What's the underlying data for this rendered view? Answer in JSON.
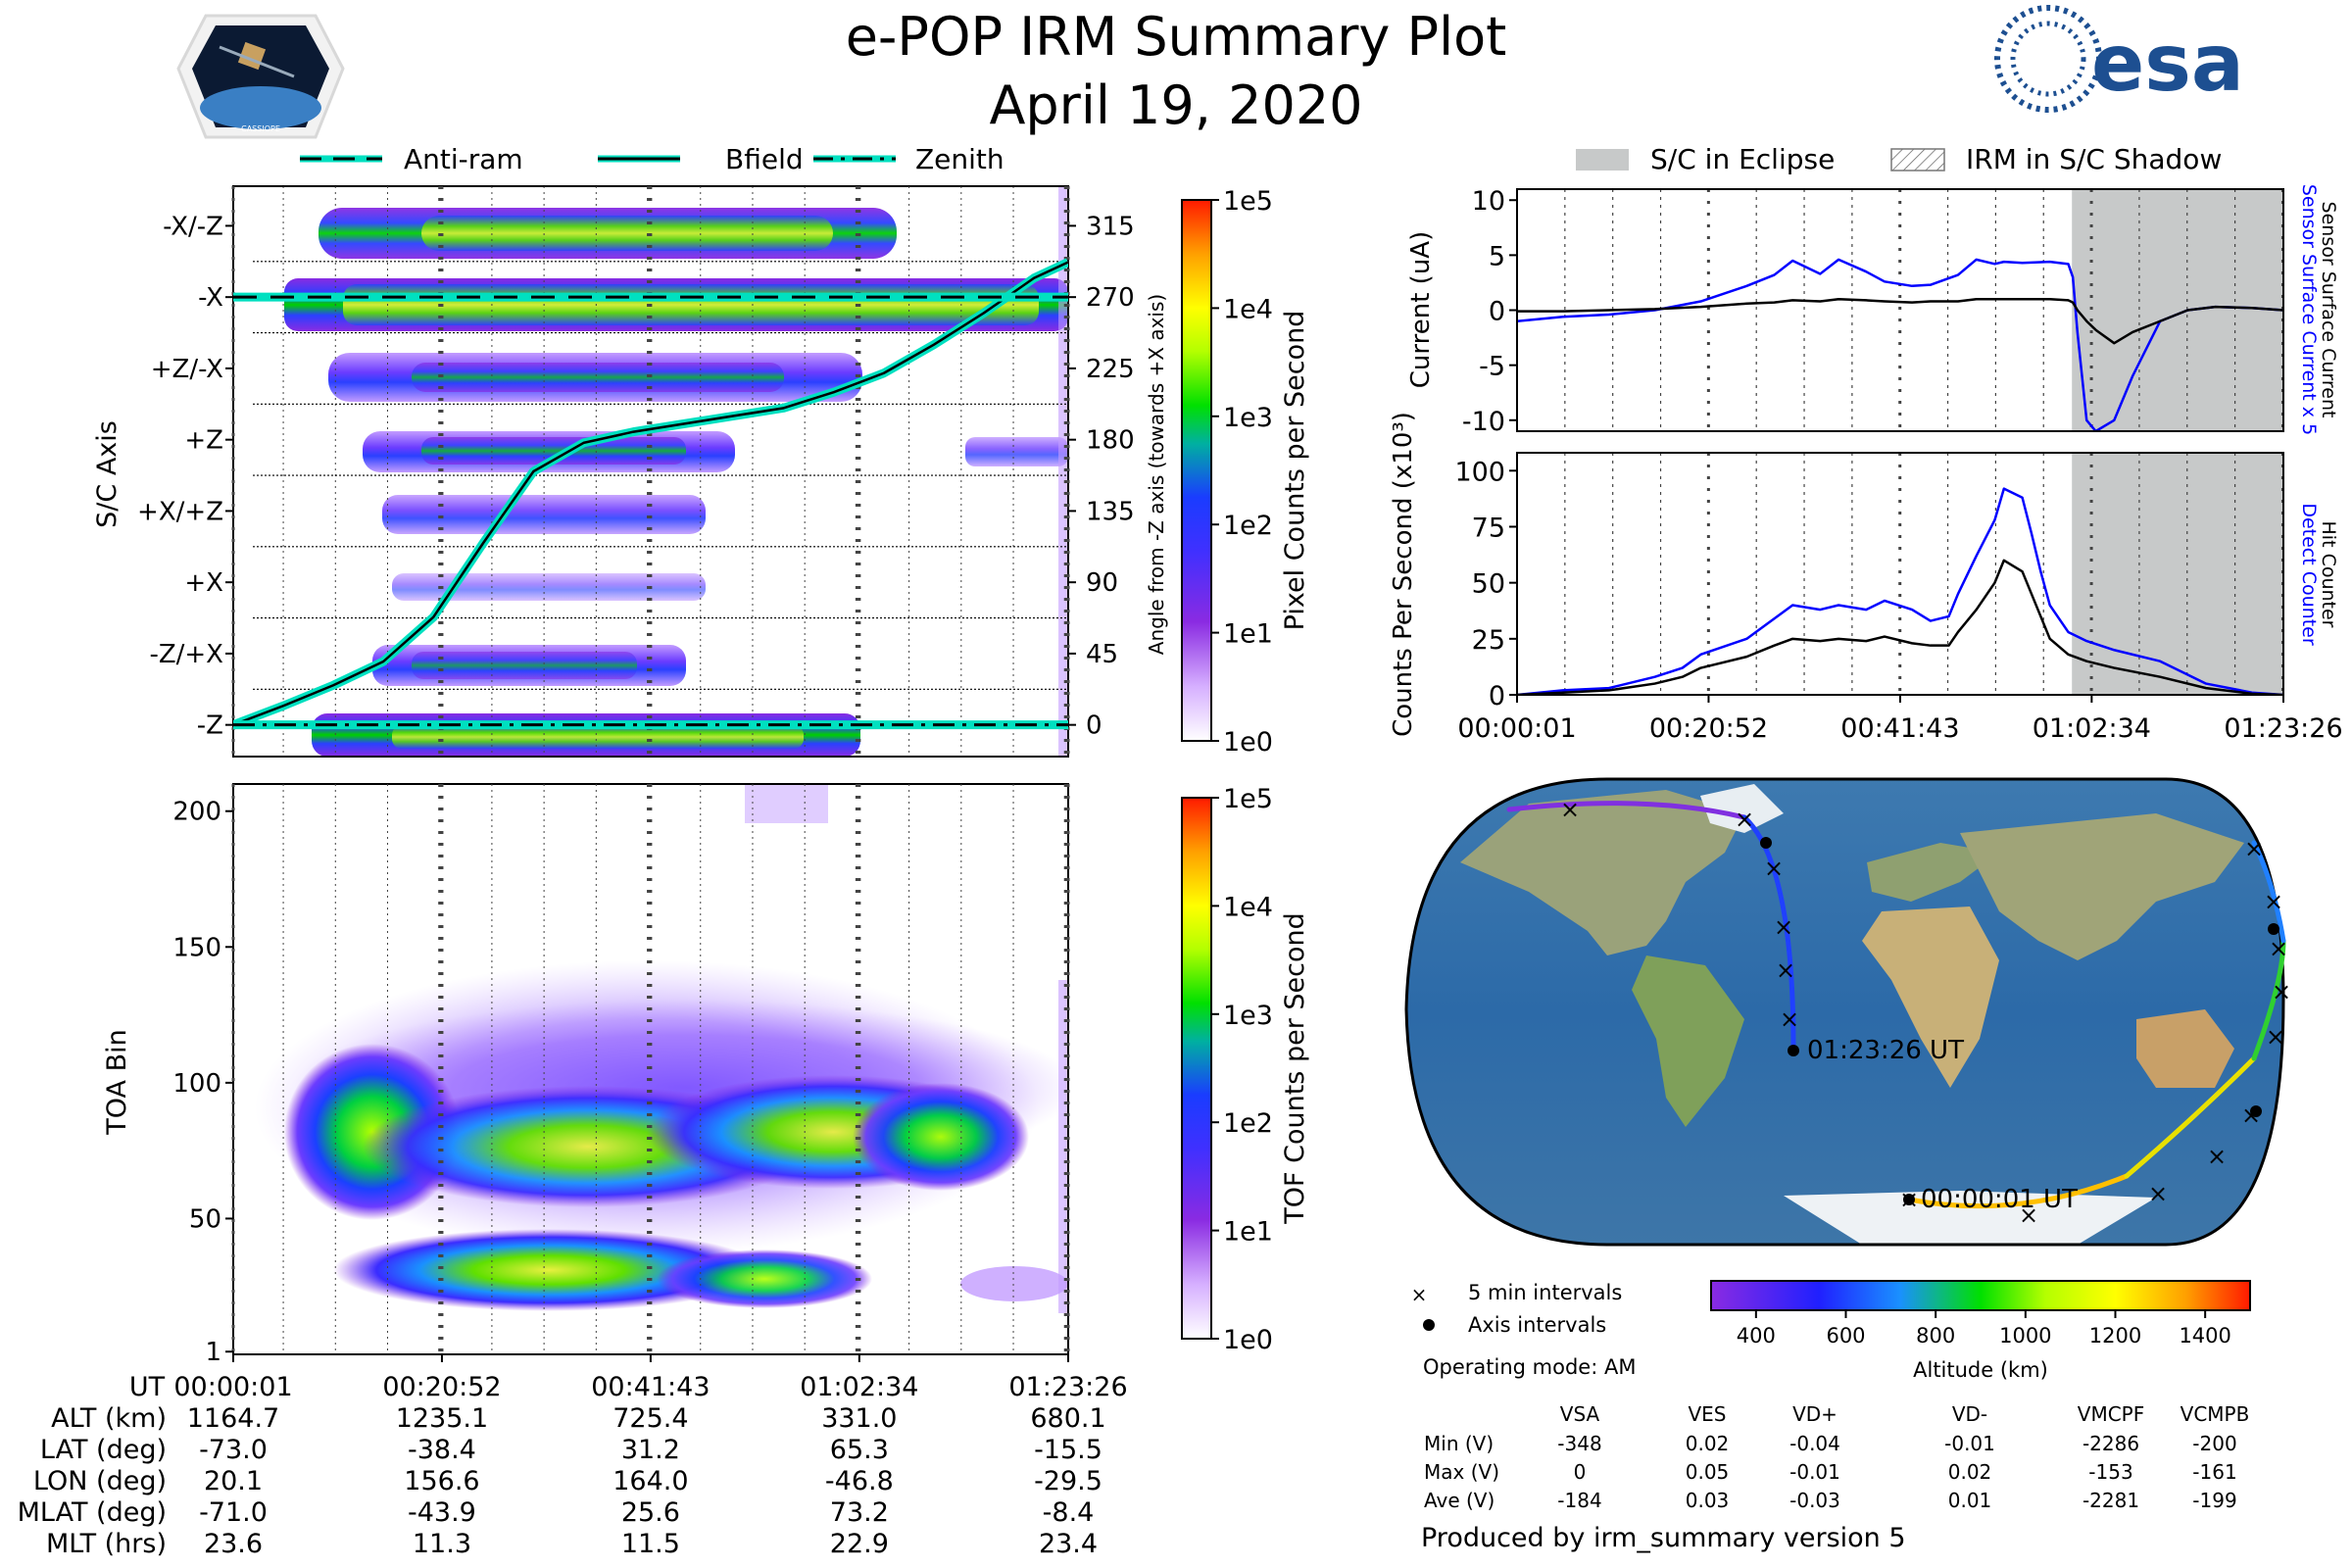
{
  "header": {
    "title": "e-POP IRM Summary Plot",
    "date": "April 19, 2020",
    "logo_left_label": "CASSIOPE",
    "logo_right_label": "esa"
  },
  "colors": {
    "pixel_cmap": [
      "#ffffff",
      "#c88cff",
      "#8a2be2",
      "#4b3cff",
      "#1f1fff",
      "#1a90ff",
      "#00c0a0",
      "#00e000",
      "#b4ff00",
      "#ffff00",
      "#ffa000",
      "#ff2000"
    ],
    "bfield_line": "#00e0c0",
    "eclipse_gray": "#c7c9c9",
    "blue_trace": "#0000ff",
    "black_trace": "#000000"
  },
  "legend_top": [
    {
      "label": "Anti-ram",
      "style": "dashed"
    },
    {
      "label": "Bfield",
      "style": "solid"
    },
    {
      "label": "Zenith",
      "style": "dashdot"
    }
  ],
  "legend_right": [
    {
      "label": "S/C in Eclipse",
      "style": "gray"
    },
    {
      "label": "IRM in S/C Shadow",
      "style": "hatch"
    }
  ],
  "chart_data": [
    {
      "name": "pixel_panel",
      "type": "heatmap",
      "ylabel": "S/C Axis",
      "y_tick_labels": [
        "-X/-Z",
        "-X",
        "+Z/-X",
        "+Z",
        "+X/+Z",
        "+X",
        "-Z/+X",
        "-Z"
      ],
      "y2_label": "Angle from -Z axis (towards +X axis)",
      "y2_tick_labels": [
        "315",
        "270",
        "225",
        "180",
        "135",
        "90",
        "45",
        "0"
      ],
      "y2_ticks": [
        315,
        270,
        225,
        180,
        135,
        90,
        45,
        0
      ],
      "y2lim": [
        -20,
        340
      ],
      "colorbar_label": "Pixel Counts per Second",
      "colorbar_ticks": [
        "1e5",
        "1e4",
        "1e3",
        "1e2",
        "1e1",
        "1e0"
      ],
      "bfield_angle_deg": {
        "x_min": [
          0,
          5,
          10,
          15,
          20,
          25,
          30,
          35,
          40,
          45,
          50,
          55,
          60,
          65,
          70,
          75,
          80,
          83.4
        ],
        "y": [
          0,
          12,
          25,
          40,
          68,
          115,
          160,
          178,
          185,
          190,
          195,
          200,
          210,
          222,
          240,
          260,
          282,
          292
        ]
      },
      "antiram_angle_deg": 270,
      "zenith_angle_deg": 0
    },
    {
      "name": "toa_panel",
      "type": "heatmap",
      "ylabel": "TOA Bin",
      "y_ticks": [
        1,
        50,
        100,
        150,
        200
      ],
      "ylim": [
        0,
        210
      ],
      "colorbar_label": "TOF Counts per Second",
      "colorbar_ticks": [
        "1e5",
        "1e4",
        "1e3",
        "1e2",
        "1e1",
        "1e0"
      ],
      "x_tick_labels": [
        "00:00:01",
        "00:20:52",
        "00:41:43",
        "01:02:34",
        "01:23:26"
      ]
    },
    {
      "name": "current_panel",
      "type": "line",
      "ylabel": "Current (uA)",
      "y_ticks": [
        10,
        5,
        0,
        -5,
        -10
      ],
      "ylim": [
        -11,
        11
      ],
      "right_label_blue": "Sensor Surface Current x 5",
      "right_label_black": "Sensor Surface Current",
      "eclipse_x_min": [
        60.4,
        83.4
      ],
      "x_min": [
        0,
        5,
        10,
        15,
        20,
        25,
        28,
        30,
        33,
        35,
        38,
        40,
        43,
        45,
        48,
        50,
        52,
        53,
        55,
        58,
        60,
        60.5,
        61,
        62,
        63,
        65,
        67,
        70,
        73,
        76,
        80,
        83.4
      ],
      "series": [
        {
          "name": "Sensor Surface Current x 5",
          "color": "blue",
          "values": [
            -1,
            -0.6,
            -0.4,
            0,
            0.8,
            2.2,
            3.2,
            4.5,
            3.3,
            4.6,
            3.5,
            2.6,
            2.2,
            2.3,
            3.2,
            4.6,
            4.2,
            4.4,
            4.3,
            4.4,
            4.2,
            3,
            -2,
            -10,
            -11,
            -10,
            -6,
            -1,
            0,
            0.3,
            0.2,
            0
          ]
        },
        {
          "name": "Sensor Surface Current",
          "color": "black",
          "values": [
            -0.1,
            -0.1,
            0,
            0.1,
            0.3,
            0.6,
            0.7,
            0.9,
            0.8,
            1,
            0.9,
            0.8,
            0.7,
            0.8,
            0.8,
            1,
            1,
            1,
            1,
            1,
            0.9,
            0.7,
            0,
            -1,
            -1.8,
            -3,
            -2,
            -1,
            0,
            0.3,
            0.2,
            0
          ]
        }
      ]
    },
    {
      "name": "counter_panel",
      "type": "line",
      "ylabel": "Counts Per Second (x10³)",
      "y_ticks": [
        100,
        75,
        50,
        25,
        0
      ],
      "ylim": [
        0,
        108
      ],
      "right_label_blue": "Detect Counter",
      "right_label_black": "Hit Counter",
      "x_tick_labels": [
        "00:00:01",
        "00:20:52",
        "00:41:43",
        "01:02:34",
        "01:23:26"
      ],
      "eclipse_x_min": [
        60.4,
        83.4
      ],
      "x_min": [
        0,
        5,
        10,
        15,
        18,
        20,
        25,
        28,
        30,
        33,
        35,
        38,
        40,
        43,
        45,
        47,
        48,
        50,
        52,
        53,
        55,
        56,
        57,
        58,
        60,
        62,
        65,
        70,
        75,
        80,
        83.4
      ],
      "series": [
        {
          "name": "Detect Counter",
          "color": "blue",
          "values": [
            0,
            2,
            3,
            8,
            12,
            18,
            25,
            34,
            40,
            38,
            40,
            38,
            42,
            38,
            33,
            35,
            45,
            62,
            78,
            92,
            88,
            72,
            55,
            40,
            28,
            24,
            20,
            15,
            5,
            1,
            0
          ]
        },
        {
          "name": "Hit Counter",
          "color": "black",
          "values": [
            0,
            1,
            2,
            5,
            8,
            12,
            17,
            22,
            25,
            24,
            25,
            24,
            26,
            23,
            22,
            22,
            28,
            38,
            50,
            60,
            55,
            45,
            35,
            25,
            18,
            15,
            12,
            8,
            3,
            0.5,
            0
          ]
        }
      ]
    }
  ],
  "time_axis": {
    "labels": [
      "00:00:01",
      "00:20:52",
      "00:41:43",
      "01:02:34",
      "01:23:26"
    ],
    "ticks_min": [
      0,
      20.85,
      41.7,
      62.55,
      83.42
    ],
    "xmax_min": 83.42
  },
  "ephemeris": {
    "header": "UT",
    "times": [
      "00:00:01",
      "00:20:52",
      "00:41:43",
      "01:02:34",
      "01:23:26"
    ],
    "rows": [
      {
        "label": "ALT (km)",
        "values": [
          "1164.7",
          "1235.1",
          "725.4",
          "331.0",
          "680.1"
        ]
      },
      {
        "label": "LAT (deg)",
        "values": [
          "-73.0",
          "-38.4",
          "31.2",
          "65.3",
          "-15.5"
        ]
      },
      {
        "label": "LON (deg)",
        "values": [
          "20.1",
          "156.6",
          "164.0",
          "-46.8",
          "-29.5"
        ]
      },
      {
        "label": "MLAT (deg)",
        "values": [
          "-71.0",
          "-43.9",
          "25.6",
          "73.2",
          "-8.4"
        ]
      },
      {
        "label": "MLT (hrs)",
        "values": [
          "23.6",
          "11.3",
          "11.5",
          "22.9",
          "23.4"
        ]
      }
    ]
  },
  "map": {
    "start_label": "00:00:01 UT",
    "end_label": "01:23:26 UT",
    "legend_x": "5 min intervals",
    "legend_dot": "Axis intervals",
    "operating_mode": "Operating mode: AM",
    "altitude_label": "Altitude (km)",
    "altitude_ticks": [
      400,
      600,
      800,
      1000,
      1200,
      1400
    ],
    "altitude_range": [
      300,
      1500
    ]
  },
  "voltages": {
    "columns": [
      "VSA",
      "VES",
      "VD+",
      "VD-",
      "VMCPF",
      "VCMPB"
    ],
    "rows": [
      {
        "label": "Min (V)",
        "values": [
          "-348",
          "0.02",
          "-0.04",
          "-0.01",
          "-2286",
          "-200"
        ]
      },
      {
        "label": "Max (V)",
        "values": [
          "0",
          "0.05",
          "-0.01",
          "0.02",
          "-153",
          "-161"
        ]
      },
      {
        "label": "Ave (V)",
        "values": [
          "-184",
          "0.03",
          "-0.03",
          "0.01",
          "-2281",
          "-199"
        ]
      }
    ]
  },
  "footer": "Produced by irm_summary version 5"
}
